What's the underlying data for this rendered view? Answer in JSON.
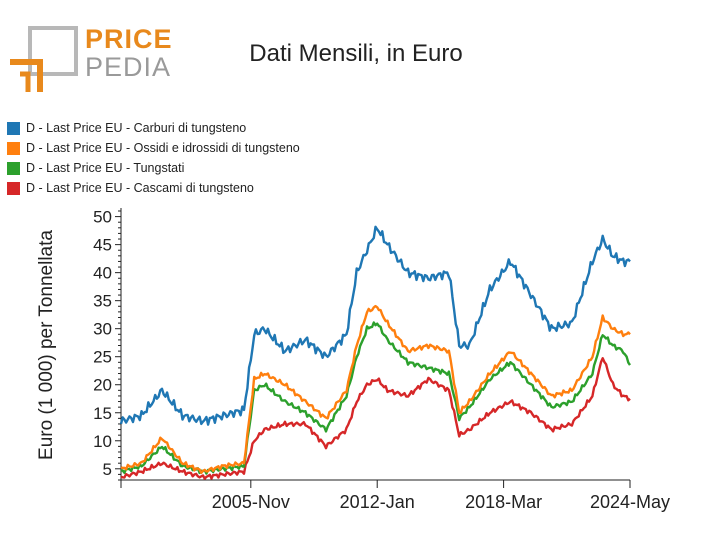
{
  "logo": {
    "top": "PRICE",
    "bottom": "PEDIA"
  },
  "title": "Dati Mensili, in Euro",
  "chart_data": {
    "type": "line",
    "title": "Dati Mensili, in Euro",
    "ylabel": "Euro (1 000) per Tonnellata",
    "xlabel": "",
    "ylim": [
      3,
      51
    ],
    "y_ticks": [
      5,
      10,
      15,
      20,
      25,
      30,
      35,
      40,
      45,
      50
    ],
    "x_ticks": [
      "2005-Nov",
      "2012-Jan",
      "2018-Mar",
      "2024-May"
    ],
    "x_start": "1999-Jul",
    "x_end": "2024-May",
    "legend_position": "top-left",
    "grid": false,
    "x": [
      "1999-Jul",
      "2000-Jul",
      "2001-Jul",
      "2002-Jul",
      "2003-Jul",
      "2004-Jul",
      "2005-Jul",
      "2006-Jan",
      "2006-Jul",
      "2007-Jul",
      "2008-Jul",
      "2009-Jul",
      "2010-Jul",
      "2011-Jan",
      "2011-Jul",
      "2012-Jan",
      "2012-Jul",
      "2013-Jul",
      "2014-Jul",
      "2015-Jul",
      "2016-Jan",
      "2016-Jul",
      "2017-Jul",
      "2018-Jul",
      "2019-Jul",
      "2020-Jul",
      "2021-Jul",
      "2022-Jul",
      "2023-Jan",
      "2023-Jul",
      "2024-Jan",
      "2024-May"
    ],
    "series": [
      {
        "name": "D - Last Price EU - Carburi di tungsteno",
        "color": "#1f77b4",
        "values": [
          13.5,
          14.5,
          19,
          14.5,
          13.5,
          14.5,
          15.5,
          29,
          30,
          26,
          28,
          25,
          29,
          40,
          44,
          48,
          45,
          40,
          39,
          40,
          27,
          27,
          37,
          42,
          36,
          30,
          31,
          42,
          46,
          43,
          42,
          42
        ]
      },
      {
        "name": "D - Last Price EU - Ossidi e idrossidi di tungsteno",
        "color": "#ff7f0e",
        "values": [
          5,
          6,
          10.5,
          6,
          4.5,
          5.5,
          6,
          21,
          22,
          20,
          17,
          14,
          19,
          27,
          33,
          34,
          31,
          26,
          27,
          26,
          15,
          17,
          22,
          26,
          22,
          18,
          19,
          25,
          32,
          30,
          29,
          29
        ]
      },
      {
        "name": "D - Last Price EU - Tungstati",
        "color": "#2ca02c",
        "values": [
          4.5,
          5.5,
          9,
          5.5,
          4.5,
          5,
          5.5,
          19,
          20,
          17,
          15,
          12,
          18,
          25,
          30,
          31,
          28,
          24,
          23,
          22,
          14,
          16,
          21,
          24,
          20,
          16,
          17,
          22,
          29,
          27,
          26,
          23.5
        ]
      },
      {
        "name": "D - Last Price EU - Cascami di tungsteno",
        "color": "#d62728",
        "values": [
          3.5,
          4.5,
          6,
          4.5,
          3.5,
          4,
          4.5,
          10,
          12,
          13,
          13,
          9,
          12,
          17,
          20,
          21,
          19,
          18,
          21,
          19,
          11,
          12,
          15,
          17,
          15,
          12,
          13,
          18,
          25,
          20,
          18,
          17.5
        ]
      }
    ]
  }
}
